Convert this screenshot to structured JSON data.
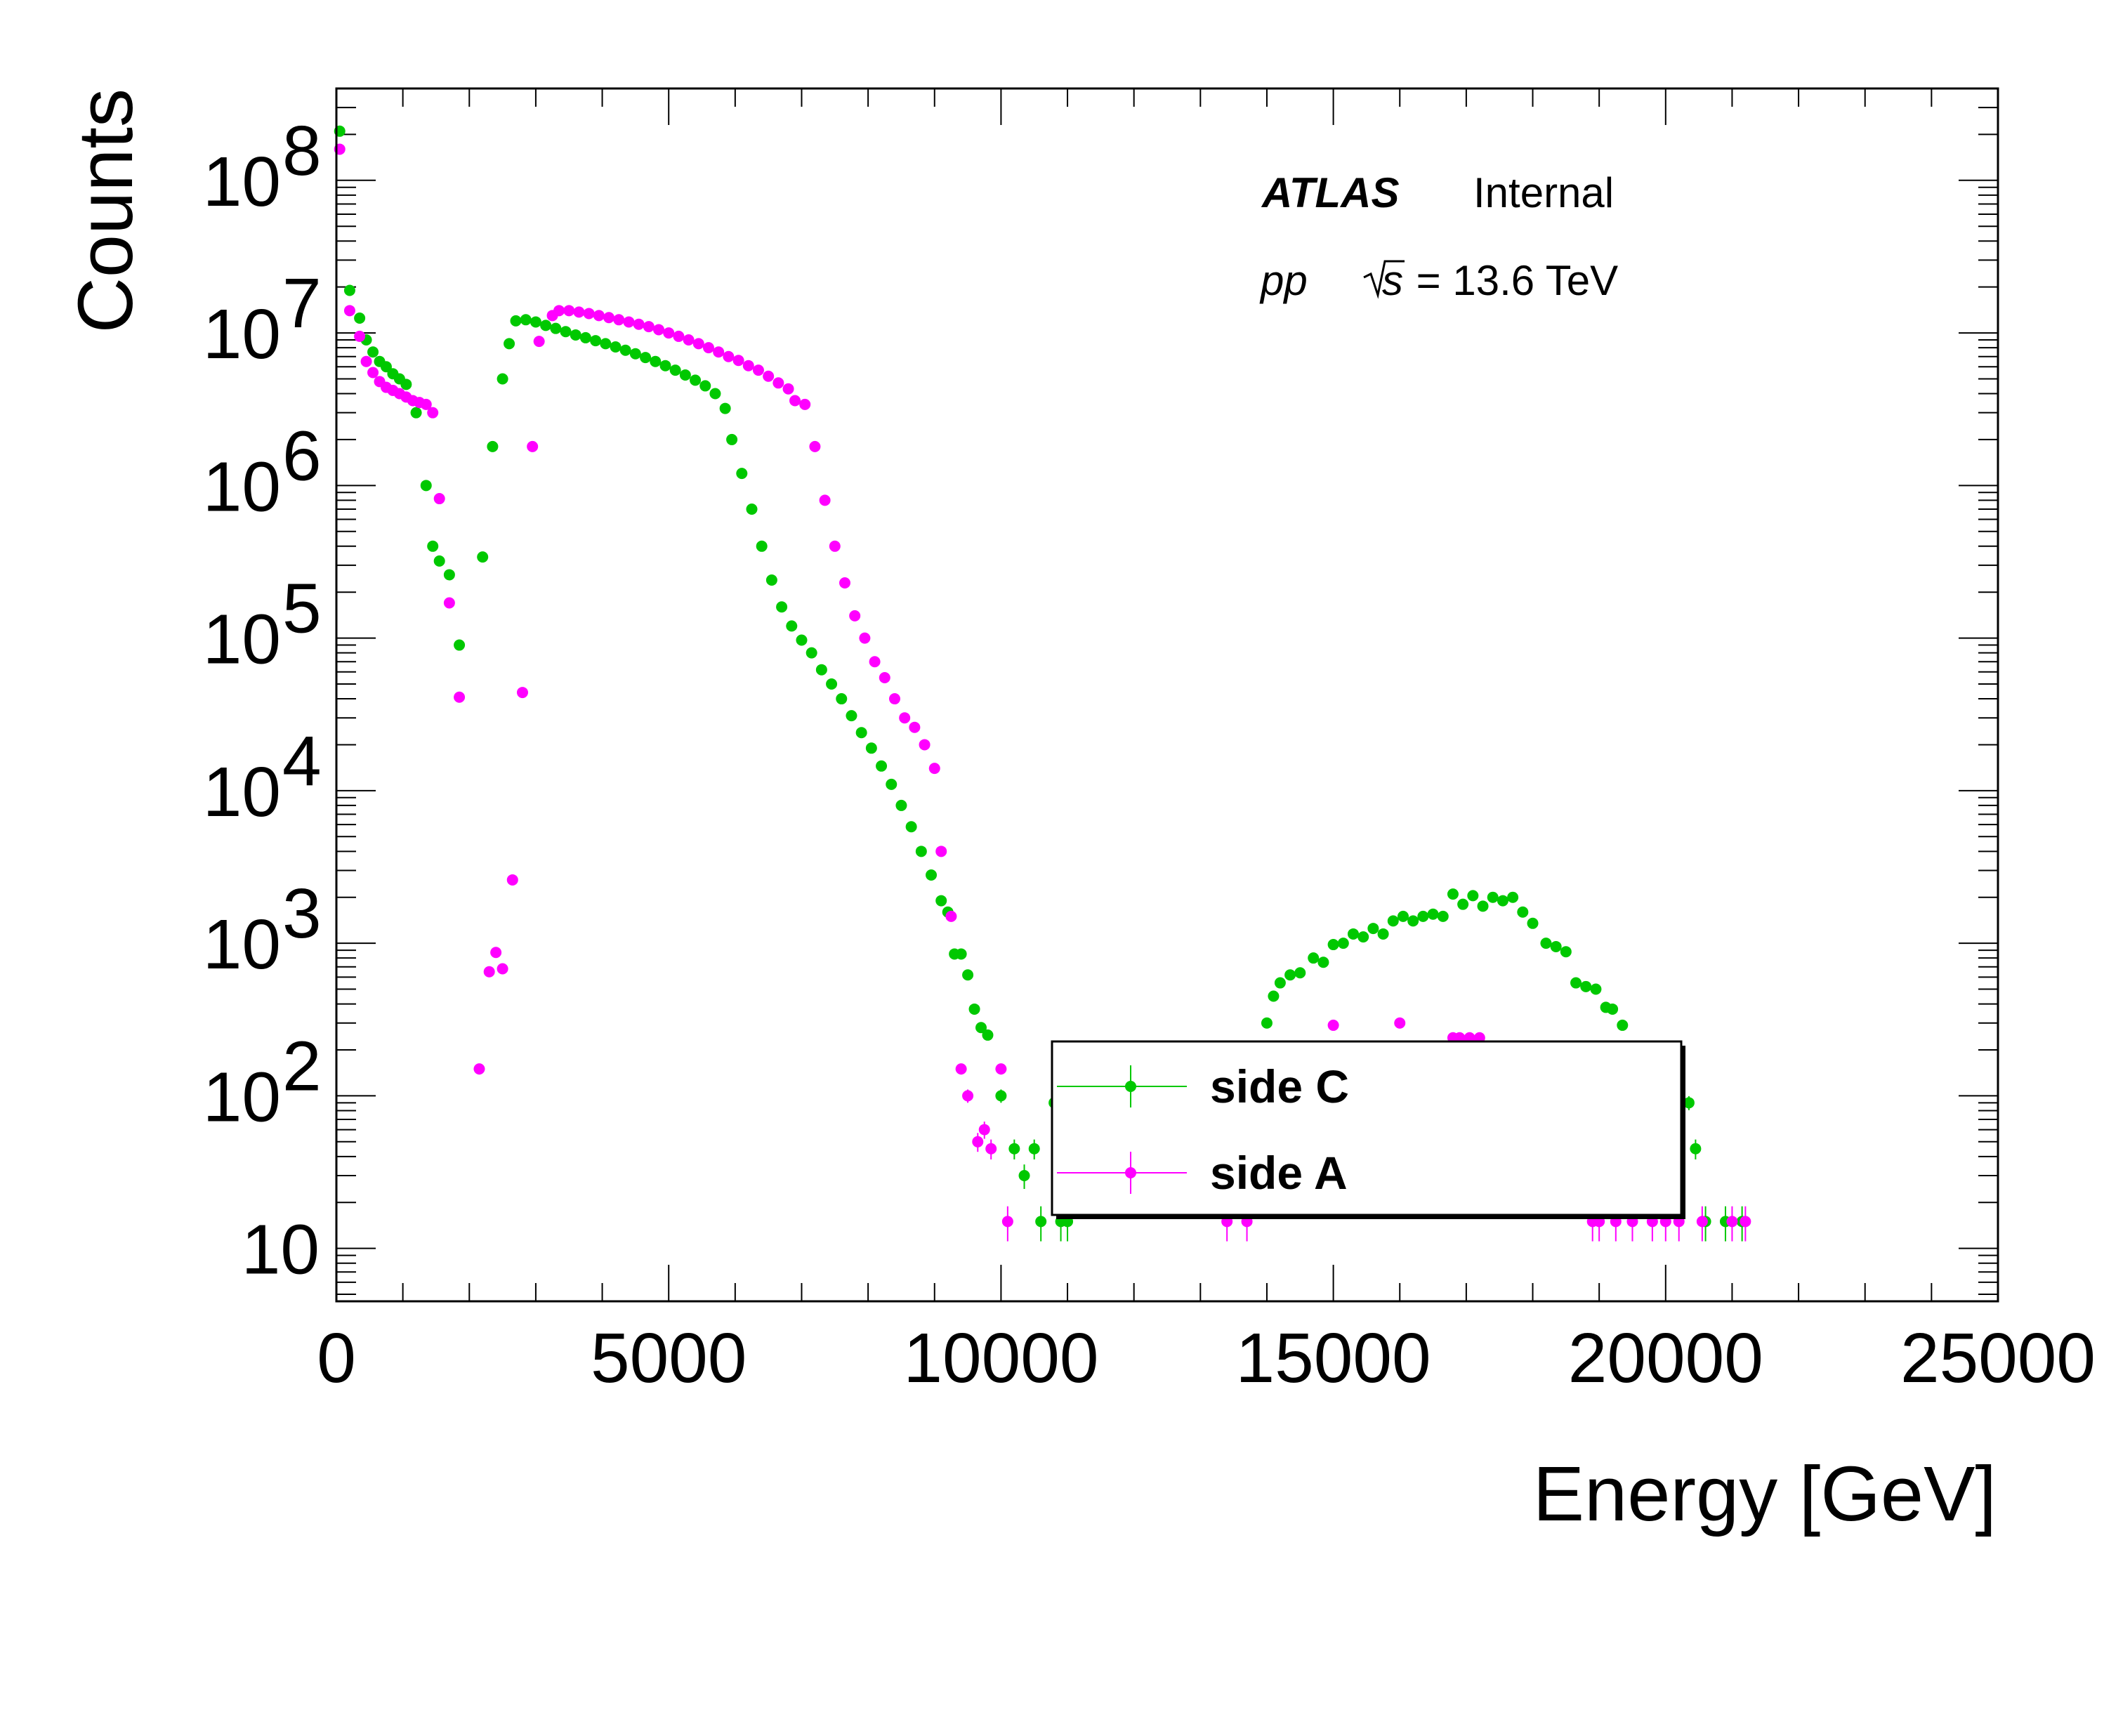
{
  "chart_data": {
    "type": "scatter",
    "xlabel": "Energy [GeV]",
    "ylabel": "Counts",
    "xlim": [
      0,
      25000
    ],
    "ylim": [
      4.5,
      400000000
    ],
    "yscale": "log",
    "x_ticks": [
      0,
      5000,
      10000,
      15000,
      20000,
      25000
    ],
    "x_tick_labels": [
      "0",
      "5000",
      "10000",
      "15000",
      "20000",
      "25000"
    ],
    "y_ticks": [
      10,
      100,
      1000,
      10000,
      100000,
      1000000,
      10000000,
      100000000
    ],
    "y_tick_labels": [
      {
        "base": "10",
        "exp": ""
      },
      {
        "base": "10",
        "exp": "2"
      },
      {
        "base": "10",
        "exp": "3"
      },
      {
        "base": "10",
        "exp": "4"
      },
      {
        "base": "10",
        "exp": "5"
      },
      {
        "base": "10",
        "exp": "6"
      },
      {
        "base": "10",
        "exp": "7"
      },
      {
        "base": "10",
        "exp": "8"
      }
    ],
    "grid": false,
    "legend_position": "lower-center",
    "annotations": {
      "experiment": "ATLAS",
      "status": "Internal",
      "process": "pp",
      "sqrt_s": "s",
      "energy_text": " = 13.6 TeV"
    },
    "series": [
      {
        "name": "side C",
        "color": "#00c800",
        "points": [
          [
            50,
            210000000
          ],
          [
            200,
            19000000
          ],
          [
            350,
            12500000
          ],
          [
            450,
            9000000
          ],
          [
            550,
            7500000
          ],
          [
            650,
            6500000
          ],
          [
            750,
            6000000
          ],
          [
            850,
            5400000
          ],
          [
            950,
            5000000
          ],
          [
            1050,
            4600000
          ],
          [
            1200,
            3000000
          ],
          [
            1350,
            1000000
          ],
          [
            1450,
            400000
          ],
          [
            1550,
            320000
          ],
          [
            1700,
            260000
          ],
          [
            1850,
            90000
          ],
          [
            2200,
            340000
          ],
          [
            2350,
            1800000
          ],
          [
            2500,
            5000000
          ],
          [
            2600,
            8500000
          ],
          [
            2700,
            12000000
          ],
          [
            2850,
            12200000
          ],
          [
            3000,
            11800000
          ],
          [
            3150,
            11200000
          ],
          [
            3300,
            10700000
          ],
          [
            3450,
            10200000
          ],
          [
            3600,
            9700000
          ],
          [
            3750,
            9300000
          ],
          [
            3900,
            8900000
          ],
          [
            4050,
            8500000
          ],
          [
            4200,
            8100000
          ],
          [
            4350,
            7700000
          ],
          [
            4500,
            7300000
          ],
          [
            4650,
            6900000
          ],
          [
            4800,
            6500000
          ],
          [
            4950,
            6100000
          ],
          [
            5100,
            5700000
          ],
          [
            5250,
            5300000
          ],
          [
            5400,
            4900000
          ],
          [
            5550,
            4500000
          ],
          [
            5700,
            4000000
          ],
          [
            5850,
            3200000
          ],
          [
            5950,
            2000000
          ],
          [
            6100,
            1200000
          ],
          [
            6250,
            700000
          ],
          [
            6400,
            400000
          ],
          [
            6550,
            240000
          ],
          [
            6700,
            160000
          ],
          [
            6850,
            120000
          ],
          [
            7000,
            97000
          ],
          [
            7150,
            80000
          ],
          [
            7300,
            62000
          ],
          [
            7450,
            50000
          ],
          [
            7600,
            40000
          ],
          [
            7750,
            31000
          ],
          [
            7900,
            24000
          ],
          [
            8050,
            19000
          ],
          [
            8200,
            14500
          ],
          [
            8350,
            11000
          ],
          [
            8500,
            8000
          ],
          [
            8650,
            5800
          ],
          [
            8800,
            4000
          ],
          [
            8950,
            2800
          ],
          [
            9100,
            1900
          ],
          [
            9200,
            1600
          ],
          [
            9300,
            850
          ],
          [
            9400,
            850
          ],
          [
            9500,
            620
          ],
          [
            9600,
            370
          ],
          [
            9700,
            280
          ],
          [
            9800,
            250
          ],
          [
            10000,
            100
          ],
          [
            10200,
            45
          ],
          [
            10350,
            30
          ],
          [
            10500,
            45
          ],
          [
            10600,
            15
          ],
          [
            10800,
            90
          ],
          [
            10900,
            15
          ],
          [
            11000,
            15
          ],
          [
            13900,
            190
          ],
          [
            14000,
            300
          ],
          [
            14100,
            450
          ],
          [
            14200,
            550
          ],
          [
            14350,
            620
          ],
          [
            14500,
            640
          ],
          [
            14700,
            800
          ],
          [
            14850,
            750
          ],
          [
            15000,
            980
          ],
          [
            15150,
            1000
          ],
          [
            15300,
            1150
          ],
          [
            15450,
            1100
          ],
          [
            15600,
            1250
          ],
          [
            15750,
            1150
          ],
          [
            15900,
            1400
          ],
          [
            16050,
            1500
          ],
          [
            16200,
            1400
          ],
          [
            16350,
            1500
          ],
          [
            16500,
            1550
          ],
          [
            16650,
            1500
          ],
          [
            16800,
            2100
          ],
          [
            16950,
            1800
          ],
          [
            17100,
            2050
          ],
          [
            17250,
            1750
          ],
          [
            17400,
            2000
          ],
          [
            17550,
            1900
          ],
          [
            17700,
            2000
          ],
          [
            17850,
            1600
          ],
          [
            18000,
            1350
          ],
          [
            18200,
            1000
          ],
          [
            18350,
            950
          ],
          [
            18500,
            880
          ],
          [
            18650,
            550
          ],
          [
            18800,
            520
          ],
          [
            18950,
            500
          ],
          [
            19100,
            380
          ],
          [
            19200,
            370
          ],
          [
            19350,
            290
          ],
          [
            20350,
            90
          ],
          [
            20450,
            45
          ],
          [
            20600,
            15
          ],
          [
            20900,
            15
          ],
          [
            21150,
            15
          ]
        ]
      },
      {
        "name": "side A",
        "color": "#ff00ff",
        "points": [
          [
            50,
            160000000
          ],
          [
            200,
            14000000
          ],
          [
            350,
            9500000
          ],
          [
            450,
            6500000
          ],
          [
            550,
            5500000
          ],
          [
            650,
            4800000
          ],
          [
            750,
            4400000
          ],
          [
            850,
            4200000
          ],
          [
            950,
            4000000
          ],
          [
            1050,
            3800000
          ],
          [
            1150,
            3600000
          ],
          [
            1250,
            3500000
          ],
          [
            1350,
            3400000
          ],
          [
            1450,
            3000000
          ],
          [
            1550,
            820000
          ],
          [
            1700,
            170000
          ],
          [
            1850,
            41000
          ],
          [
            2150,
            150
          ],
          [
            2300,
            650
          ],
          [
            2400,
            870
          ],
          [
            2500,
            680
          ],
          [
            2650,
            2600
          ],
          [
            2800,
            44000
          ],
          [
            2950,
            1800000
          ],
          [
            3050,
            8800000
          ],
          [
            3250,
            13000000
          ],
          [
            3350,
            14000000
          ],
          [
            3500,
            14000000
          ],
          [
            3650,
            13700000
          ],
          [
            3800,
            13400000
          ],
          [
            3950,
            13000000
          ],
          [
            4100,
            12600000
          ],
          [
            4250,
            12200000
          ],
          [
            4400,
            11800000
          ],
          [
            4550,
            11400000
          ],
          [
            4700,
            11000000
          ],
          [
            4850,
            10500000
          ],
          [
            5000,
            10000000
          ],
          [
            5150,
            9500000
          ],
          [
            5300,
            9000000
          ],
          [
            5450,
            8500000
          ],
          [
            5600,
            8000000
          ],
          [
            5750,
            7500000
          ],
          [
            5900,
            7000000
          ],
          [
            6050,
            6600000
          ],
          [
            6200,
            6100000
          ],
          [
            6350,
            5700000
          ],
          [
            6500,
            5200000
          ],
          [
            6650,
            4700000
          ],
          [
            6800,
            4300000
          ],
          [
            6900,
            3600000
          ],
          [
            7050,
            3400000
          ],
          [
            7200,
            1800000
          ],
          [
            7350,
            800000
          ],
          [
            7500,
            400000
          ],
          [
            7650,
            230000
          ],
          [
            7800,
            140000
          ],
          [
            7950,
            100000
          ],
          [
            8100,
            70000
          ],
          [
            8250,
            55000
          ],
          [
            8400,
            40000
          ],
          [
            8550,
            30000
          ],
          [
            8700,
            26000
          ],
          [
            8850,
            20000
          ],
          [
            9000,
            14000
          ],
          [
            9100,
            4000
          ],
          [
            9250,
            1500
          ],
          [
            9400,
            150
          ],
          [
            9500,
            100
          ],
          [
            9650,
            50
          ],
          [
            9750,
            60
          ],
          [
            9850,
            45
          ],
          [
            10000,
            150
          ],
          [
            10100,
            15
          ],
          [
            13400,
            15
          ],
          [
            13700,
            15
          ],
          [
            13800,
            95
          ],
          [
            13900,
            100
          ],
          [
            14000,
            150
          ],
          [
            14200,
            210
          ],
          [
            14500,
            110
          ],
          [
            14700,
            190
          ],
          [
            15000,
            290
          ],
          [
            15200,
            160
          ],
          [
            15400,
            110
          ],
          [
            15600,
            90
          ],
          [
            15800,
            95
          ],
          [
            16000,
            300
          ],
          [
            16200,
            110
          ],
          [
            16500,
            150
          ],
          [
            16700,
            200
          ],
          [
            16800,
            240
          ],
          [
            16900,
            240
          ],
          [
            17050,
            240
          ],
          [
            17200,
            240
          ],
          [
            17350,
            100
          ],
          [
            18550,
            80
          ],
          [
            18900,
            15
          ],
          [
            19000,
            15
          ],
          [
            19250,
            15
          ],
          [
            19500,
            15
          ],
          [
            19800,
            15
          ],
          [
            20000,
            15
          ],
          [
            20200,
            15
          ],
          [
            20550,
            15
          ],
          [
            21000,
            15
          ],
          [
            21200,
            15
          ]
        ]
      }
    ]
  }
}
